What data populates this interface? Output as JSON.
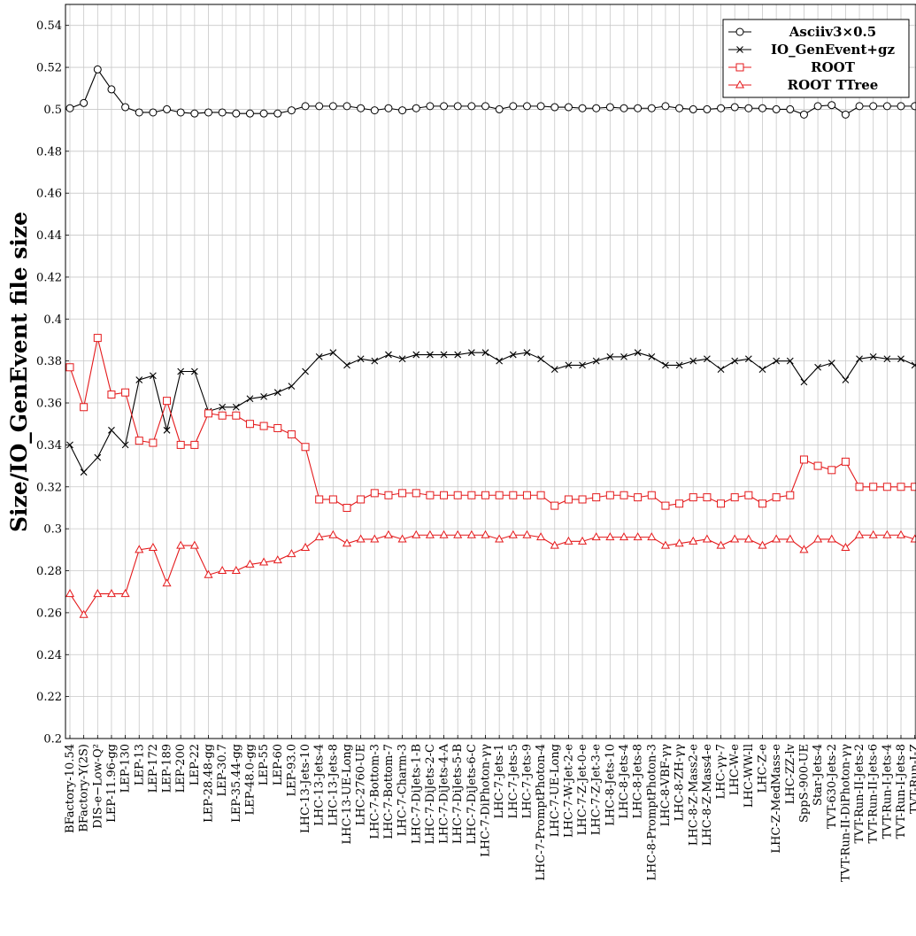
{
  "chart_data": {
    "type": "line",
    "ylabel": "Size/IO_GenEvent file size",
    "xlabel": "",
    "title": "",
    "ylim": [
      0.2,
      0.55
    ],
    "yticks": [
      "0.2",
      "0.22",
      "0.24",
      "0.26",
      "0.28",
      "0.3",
      "0.32",
      "0.34",
      "0.36",
      "0.38",
      "0.4",
      "0.42",
      "0.44",
      "0.46",
      "0.48",
      "0.5",
      "0.52",
      "0.54"
    ],
    "grid": true,
    "legend_position": "top-right",
    "categories": [
      "BFactory-10.54",
      "BFactory-Υ(2S)",
      "DIS-e−Low-Q²",
      "LEP-11.96-gg",
      "LEP-130",
      "LEP-13",
      "LEP-172",
      "LEP-189",
      "LEP-200",
      "LEP-22",
      "LEP-28.48-gg",
      "LEP-30.7",
      "LEP-35.44-gg",
      "LEP-48.0-gg",
      "LEP-55",
      "LEP-60",
      "LEP-93.0",
      "LHC-13-Jets-10",
      "LHC-13-Jets-4",
      "LHC-13-Jets-8",
      "LHC-13-UE-Long",
      "LHC-2760-UE",
      "LHC-7-Bottom-3",
      "LHC-7-Bottom-7",
      "LHC-7-Charm-3",
      "LHC-7-DiJets-1-B",
      "LHC-7-DiJets-2-C",
      "LHC-7-DiJets-4-A",
      "LHC-7-DiJets-5-B",
      "LHC-7-DiJets-6-C",
      "LHC-7-DiPhoton-γγ",
      "LHC-7-Jets-1",
      "LHC-7-Jets-5",
      "LHC-7-Jets-9",
      "LHC-7-PromptPhoton-4",
      "LHC-7-UE-Long",
      "LHC-7-W-Jet-2-e",
      "LHC-7-Z-Jet-0-e",
      "LHC-7-Z-Jet-3-e",
      "LHC-8-Jets-10",
      "LHC-8-Jets-4",
      "LHC-8-Jets-8",
      "LHC-8-PromptPhoton-3",
      "LHC-8-VBF-γγ",
      "LHC-8-ZH-γγ",
      "LHC-8-Z-Mass2-e",
      "LHC-8-Z-Mass4-e",
      "LHC-γγ-7",
      "LHC-W-e",
      "LHC-WW-ll",
      "LHC-Z-e",
      "LHC-Z-MedMass-e",
      "LHC-ZZ-lv",
      "SppS-900-UE",
      "Star-Jets-4",
      "TVT-630-Jets-2",
      "TVT-Run-II-DiPhoton-γγ",
      "TVT-Run-II-Jets-2",
      "TVT-Run-II-Jets-6",
      "TVT-Run-I-Jets-4",
      "TVT-Run-I-Jets-8",
      "TVT-Run-I-Z"
    ],
    "series": [
      {
        "name": "Asciiv3×0.5",
        "color": "#000000",
        "marker": "circle",
        "values": [
          0.5005,
          0.503,
          0.519,
          0.5095,
          0.501,
          0.4985,
          0.4985,
          0.5,
          0.4985,
          0.498,
          0.4985,
          0.4985,
          0.498,
          0.498,
          0.498,
          0.498,
          0.4995,
          0.5015,
          0.5015,
          0.5015,
          0.5015,
          0.5005,
          0.4995,
          0.5005,
          0.4995,
          0.5005,
          0.5015,
          0.5015,
          0.5015,
          0.5015,
          0.5015,
          0.5,
          0.5015,
          0.5015,
          0.5015,
          0.501,
          0.501,
          0.5005,
          0.5005,
          0.501,
          0.5005,
          0.5005,
          0.5005,
          0.5015,
          0.5005,
          0.5,
          0.5,
          0.5005,
          0.501,
          0.5005,
          0.5005,
          0.5,
          0.5,
          0.4975,
          0.5015,
          0.502,
          0.4975,
          0.5015,
          0.5015,
          0.5015,
          0.5015,
          0.5015
        ]
      },
      {
        "name": "IO_GenEvent+gz",
        "color": "#000000",
        "marker": "x",
        "values": [
          0.34,
          0.327,
          0.334,
          0.347,
          0.34,
          0.371,
          0.373,
          0.347,
          0.375,
          0.375,
          0.356,
          0.358,
          0.358,
          0.362,
          0.363,
          0.365,
          0.368,
          0.375,
          0.382,
          0.384,
          0.378,
          0.381,
          0.38,
          0.383,
          0.381,
          0.383,
          0.383,
          0.383,
          0.383,
          0.384,
          0.384,
          0.38,
          0.383,
          0.384,
          0.381,
          0.376,
          0.378,
          0.378,
          0.38,
          0.382,
          0.382,
          0.384,
          0.382,
          0.378,
          0.378,
          0.38,
          0.381,
          0.376,
          0.38,
          0.381,
          0.376,
          0.38,
          0.38,
          0.37,
          0.377,
          0.379,
          0.371,
          0.381,
          0.382,
          0.381,
          0.381,
          0.378
        ]
      },
      {
        "name": "ROOT",
        "color": "#e41a1c",
        "marker": "square",
        "values": [
          0.377,
          0.358,
          0.391,
          0.364,
          0.365,
          0.342,
          0.341,
          0.361,
          0.34,
          0.34,
          0.355,
          0.354,
          0.354,
          0.35,
          0.349,
          0.348,
          0.345,
          0.339,
          0.314,
          0.314,
          0.31,
          0.314,
          0.317,
          0.316,
          0.317,
          0.317,
          0.316,
          0.316,
          0.316,
          0.316,
          0.316,
          0.316,
          0.316,
          0.316,
          0.316,
          0.311,
          0.314,
          0.314,
          0.315,
          0.316,
          0.316,
          0.315,
          0.316,
          0.311,
          0.312,
          0.315,
          0.315,
          0.312,
          0.315,
          0.316,
          0.312,
          0.315,
          0.316,
          0.333,
          0.33,
          0.328,
          0.332,
          0.32,
          0.32,
          0.32,
          0.32,
          0.32
        ]
      },
      {
        "name": "ROOT TTree",
        "color": "#e41a1c",
        "marker": "triangle",
        "values": [
          0.269,
          0.259,
          0.269,
          0.269,
          0.269,
          0.29,
          0.291,
          0.274,
          0.292,
          0.292,
          0.278,
          0.28,
          0.28,
          0.283,
          0.284,
          0.285,
          0.288,
          0.291,
          0.296,
          0.297,
          0.293,
          0.295,
          0.295,
          0.297,
          0.295,
          0.297,
          0.297,
          0.297,
          0.297,
          0.297,
          0.297,
          0.295,
          0.297,
          0.297,
          0.296,
          0.292,
          0.294,
          0.294,
          0.296,
          0.296,
          0.296,
          0.296,
          0.296,
          0.292,
          0.293,
          0.294,
          0.295,
          0.292,
          0.295,
          0.295,
          0.292,
          0.295,
          0.295,
          0.29,
          0.295,
          0.295,
          0.291,
          0.297,
          0.297,
          0.297,
          0.297,
          0.295
        ]
      }
    ]
  }
}
